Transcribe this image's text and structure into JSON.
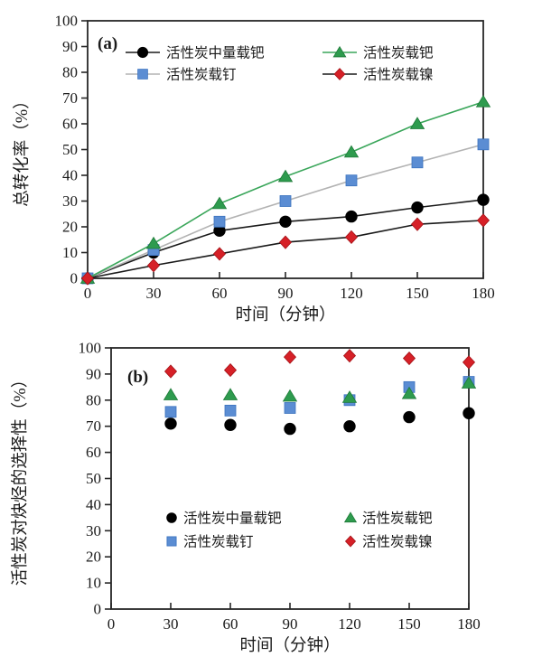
{
  "figure": {
    "background": "#ffffff",
    "axis_color": "#262626",
    "tick_label_color": "#1a1a1a"
  },
  "chart_data": [
    {
      "type": "line",
      "panel_tag": "(a)",
      "xlabel": "时间（分钟）",
      "ylabel": "总转化率（%）",
      "xlim": [
        0,
        180
      ],
      "ylim": [
        0,
        100
      ],
      "x_ticks": [
        0,
        30,
        60,
        90,
        120,
        150,
        180
      ],
      "y_ticks": [
        0,
        10,
        20,
        30,
        40,
        50,
        60,
        70,
        80,
        90,
        100
      ],
      "grid": false,
      "legend_style": "line-marker",
      "legend_position": "inside top, two columns",
      "x": [
        0,
        30,
        60,
        90,
        120,
        150,
        180
      ],
      "series": [
        {
          "name": "活性炭中量载钯",
          "marker": "circle",
          "marker_color": "#000000",
          "marker_stroke": "#000000",
          "line_color": "#1a1a1a",
          "values": [
            0,
            10,
            18.5,
            22,
            24,
            27.5,
            30.5
          ]
        },
        {
          "name": "活性炭载钉",
          "marker": "square",
          "marker_color": "#5b8dd3",
          "marker_stroke": "#3a72bf",
          "line_color": "#b3b3b3",
          "values": [
            0,
            11,
            22,
            30,
            38,
            45,
            52
          ]
        },
        {
          "name": "活性炭载钯",
          "marker": "triangle",
          "marker_color": "#2e9b4e",
          "marker_stroke": "#1e7a38",
          "line_color": "#3aa65a",
          "values": [
            0,
            13.5,
            29,
            39.5,
            49,
            60,
            68.5
          ]
        },
        {
          "name": "活性炭载镍",
          "marker": "diamond",
          "marker_color": "#d62027",
          "marker_stroke": "#a31217",
          "line_color": "#1a1a1a",
          "values": [
            0,
            5,
            9.5,
            14,
            16,
            21,
            22.5
          ]
        }
      ]
    },
    {
      "type": "scatter",
      "panel_tag": "(b)",
      "xlabel": "时间（分钟）",
      "ylabel": "活性炭对炔烃的选择性（%）",
      "xlim": [
        0,
        180
      ],
      "ylim": [
        0,
        100
      ],
      "x_ticks": [
        0,
        30,
        60,
        90,
        120,
        150,
        180
      ],
      "y_ticks": [
        0,
        10,
        20,
        30,
        40,
        50,
        60,
        70,
        80,
        90,
        100
      ],
      "grid": false,
      "legend_style": "marker",
      "legend_position": "inside bottom-middle, two columns",
      "x": [
        30,
        60,
        90,
        120,
        150,
        180
      ],
      "series": [
        {
          "name": "活性炭中量载钯",
          "marker": "circle",
          "marker_color": "#000000",
          "marker_stroke": "#000000",
          "values": [
            71,
            70.5,
            69,
            70,
            73.5,
            75
          ]
        },
        {
          "name": "活性炭载钉",
          "marker": "square",
          "marker_color": "#5b8dd3",
          "marker_stroke": "#3a72bf",
          "values": [
            75.5,
            76,
            77,
            80,
            85,
            87
          ]
        },
        {
          "name": "活性炭载钯",
          "marker": "triangle",
          "marker_color": "#2e9b4e",
          "marker_stroke": "#1e7a38",
          "values": [
            82,
            82,
            81.5,
            81,
            82.5,
            86.5
          ]
        },
        {
          "name": "活性炭载镍",
          "marker": "diamond",
          "marker_color": "#d62027",
          "marker_stroke": "#a31217",
          "values": [
            91,
            91.5,
            96.5,
            97,
            96,
            94.5
          ]
        }
      ]
    }
  ]
}
